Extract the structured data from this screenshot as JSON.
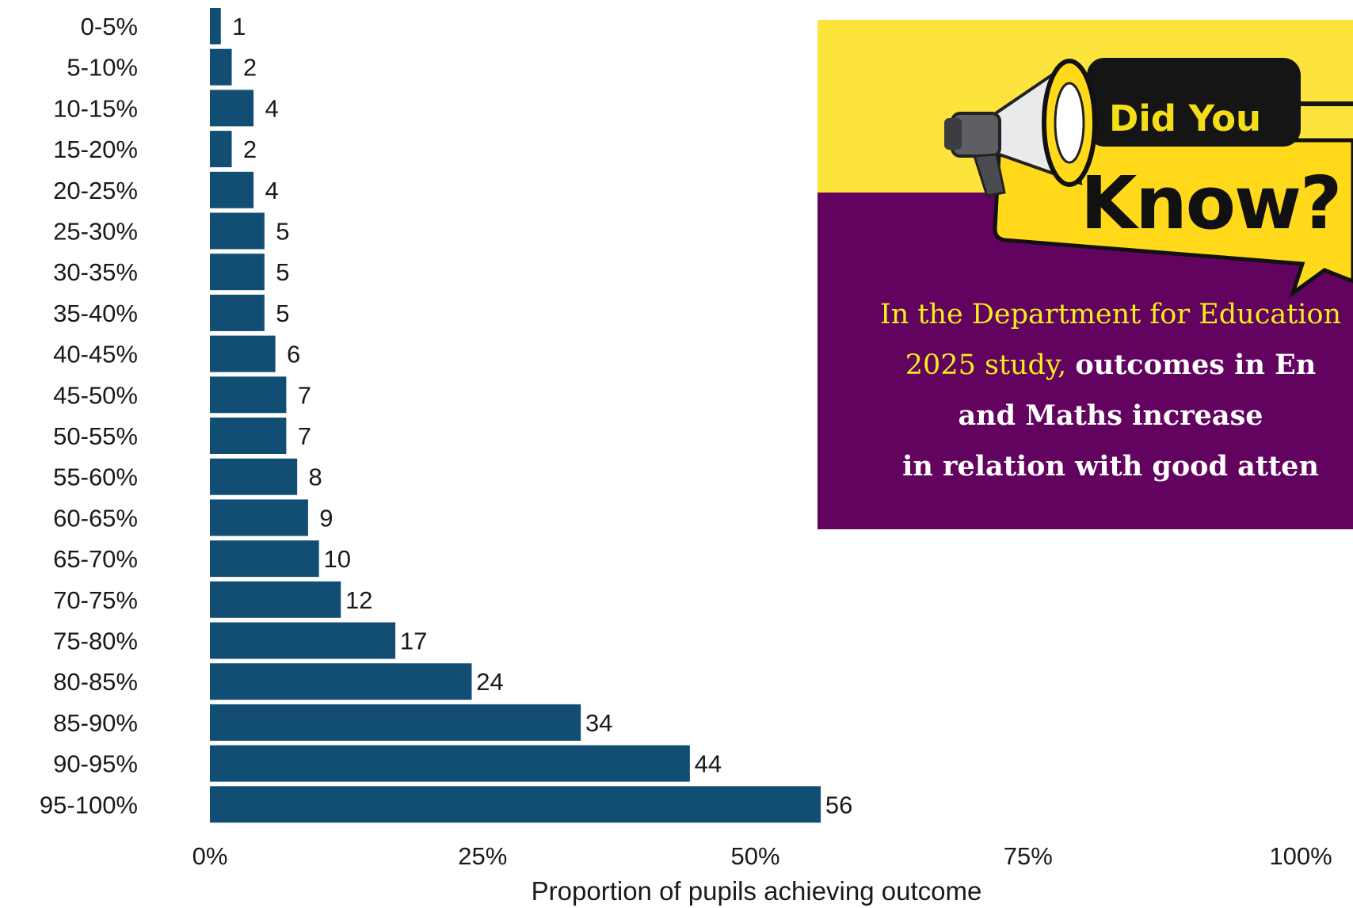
{
  "chart_data": {
    "type": "bar",
    "orientation": "horizontal",
    "categories": [
      "0-5%",
      "5-10%",
      "10-15%",
      "15-20%",
      "20-25%",
      "25-30%",
      "30-35%",
      "35-40%",
      "40-45%",
      "45-50%",
      "50-55%",
      "55-60%",
      "60-65%",
      "65-70%",
      "70-75%",
      "75-80%",
      "80-85%",
      "85-90%",
      "90-95%",
      "95-100%"
    ],
    "values": [
      1,
      2,
      4,
      2,
      4,
      5,
      5,
      5,
      6,
      7,
      7,
      8,
      9,
      10,
      12,
      17,
      24,
      34,
      44,
      56
    ],
    "xlabel": "Proportion of pupils achieving outcome",
    "xlim": [
      0,
      100
    ],
    "xticks": [
      "0%",
      "25%",
      "50%",
      "75%",
      "100%"
    ],
    "bar_color": "#124e73",
    "grid": false
  },
  "callout": {
    "did_you": "Did You",
    "know": "Know?",
    "line1": "In the Department for Education",
    "line2_prefix": "2025 study,",
    "line2_bold": "outcomes in En",
    "line3": "and Maths increase",
    "line4": "in relation with good atten",
    "colors": {
      "yellow": "#fce43c",
      "purple": "#62045f",
      "text_yellow": "#f6ee1a"
    }
  }
}
